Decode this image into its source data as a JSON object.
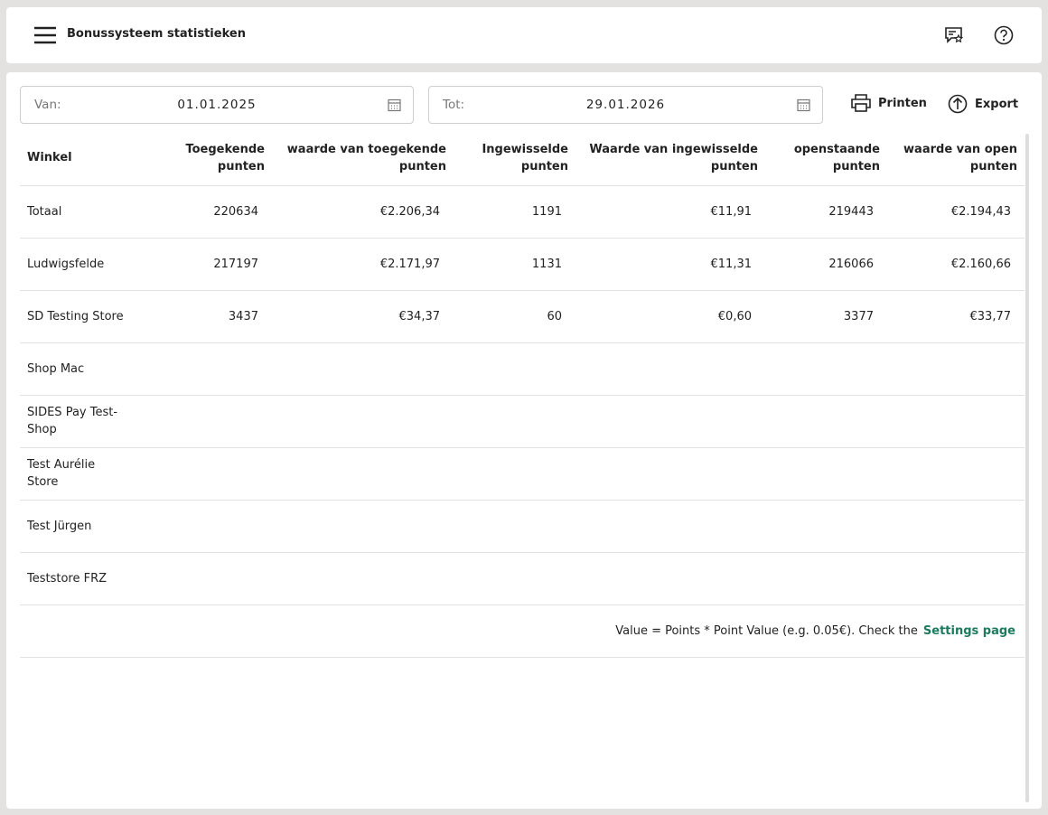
{
  "header": {
    "title": "Bonussysteem statistieken"
  },
  "filters": {
    "from_label": "Van:",
    "from_value": "01.01.2025",
    "to_label": "Tot:",
    "to_value": "29.01.2026",
    "print": "Printen",
    "export": "Export"
  },
  "table": {
    "columns": [
      "Winkel",
      "Toegekende punten",
      "waarde van toegekende punten",
      "Ingewisselde punten",
      "Waarde van ingewisselde punten",
      "openstaande punten",
      "waarde van open punten"
    ],
    "rows": [
      [
        "Totaal",
        "220634",
        "€2.206,34",
        "1191",
        "€11,91",
        "219443",
        "€2.194,43"
      ],
      [
        "Ludwigsfelde",
        "217197",
        "€2.171,97",
        "1131",
        "€11,31",
        "216066",
        "€2.160,66"
      ],
      [
        "SD Testing Store",
        "3437",
        "€34,37",
        "60",
        "€0,60",
        "3377",
        "€33,77"
      ],
      [
        "Shop Mac"
      ],
      [
        "SIDES Pay Test-Shop"
      ],
      [
        "Test Aurélie Store"
      ],
      [
        "Test Jürgen"
      ],
      [
        "Teststore FRZ"
      ]
    ],
    "note": "Value = Points * Point Value (e.g. 0.05€). Check the",
    "note_link": "Settings page"
  }
}
